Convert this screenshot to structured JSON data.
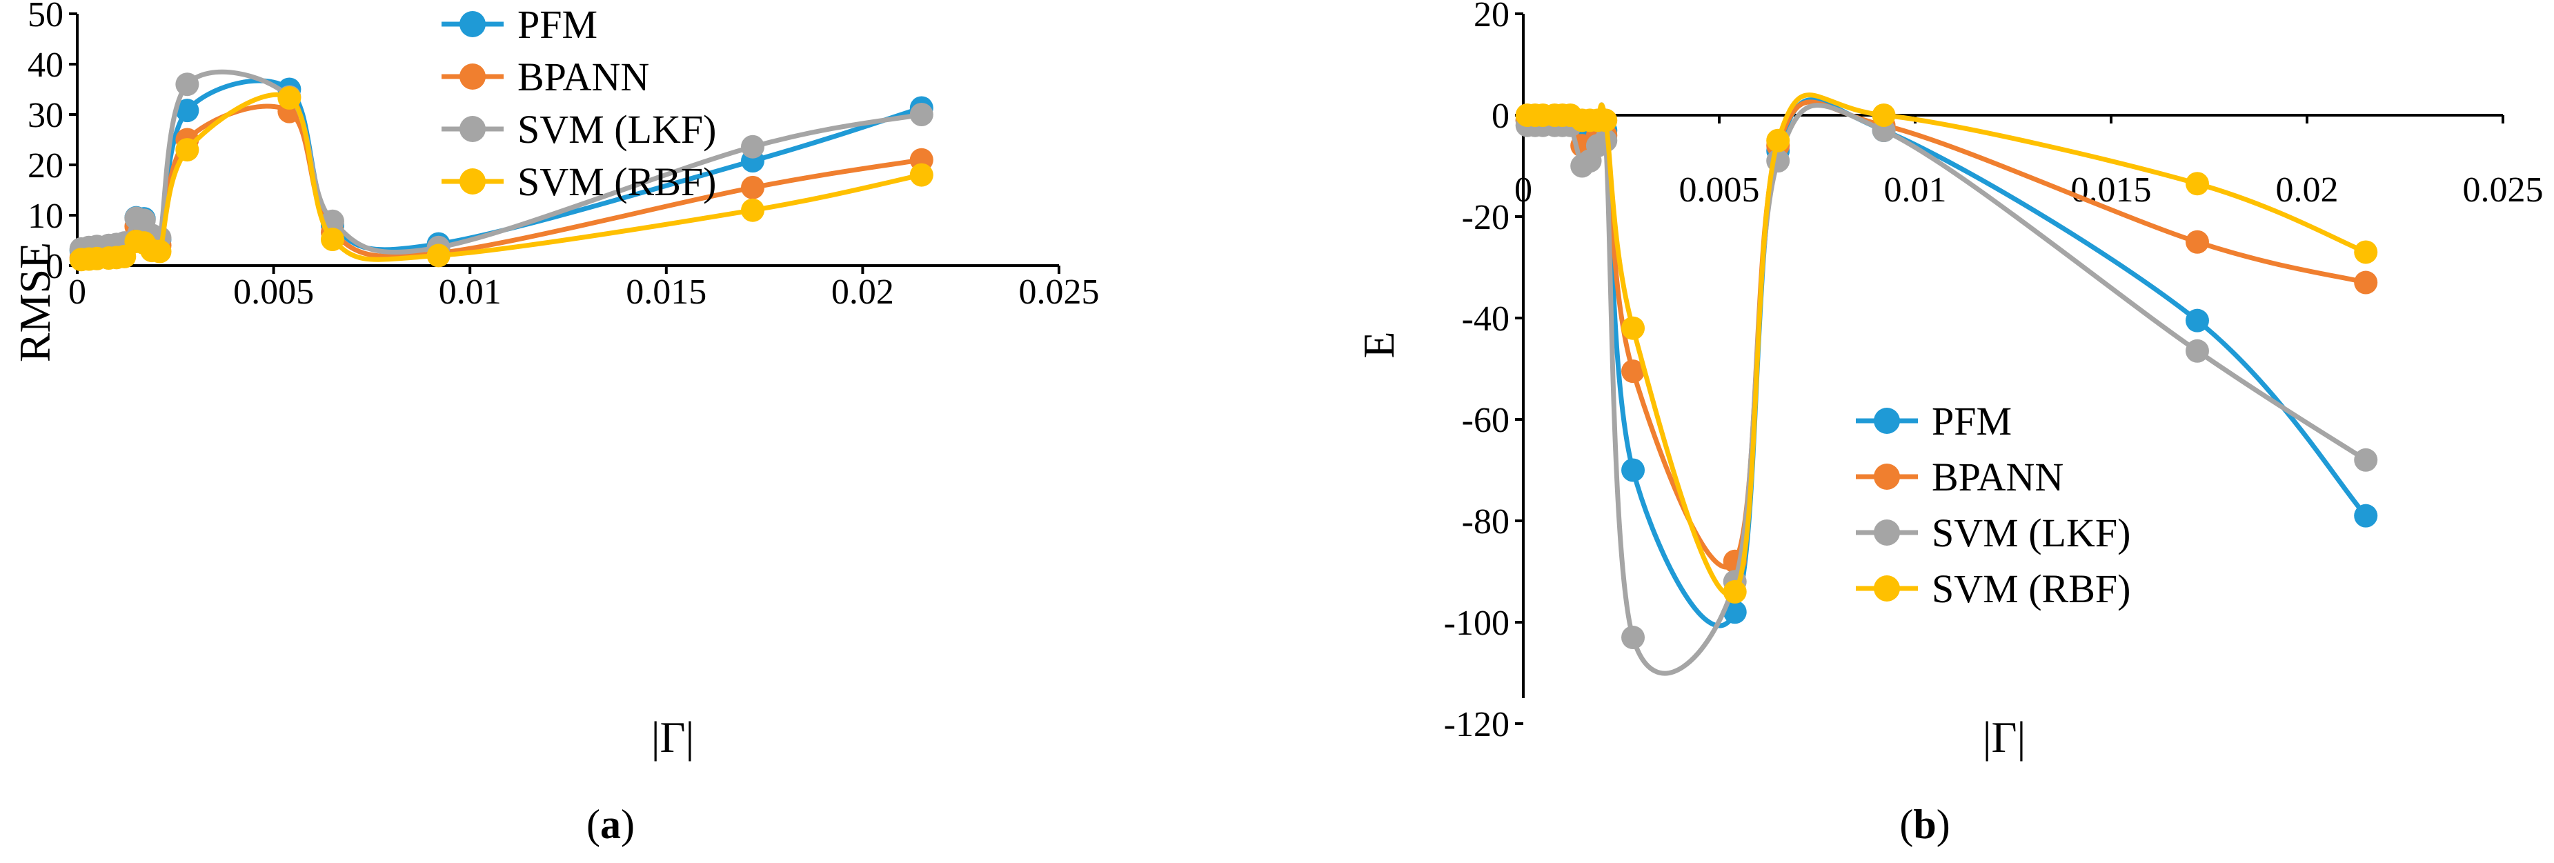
{
  "chart_data": [
    {
      "type": "scatter-smooth-line",
      "panel_label": "a",
      "xlabel": "|Γ|",
      "ylabel": "RMSE",
      "xlim": [
        0,
        0.025
      ],
      "ylim": [
        0,
        50
      ],
      "x_ticks": [
        0,
        0.005,
        0.01,
        0.015,
        0.02,
        0.025
      ],
      "x_tick_labels": [
        "0",
        "0.005",
        "0.01",
        "0.015",
        "0.02",
        "0.025"
      ],
      "y_ticks": [
        0,
        10,
        20,
        30,
        40,
        50
      ],
      "y_tick_labels": [
        "0",
        "10",
        "20",
        "30",
        "40",
        "50"
      ],
      "legend_position": "top-center",
      "x": [
        0.0001,
        0.0003,
        0.0005,
        0.0008,
        0.001,
        0.0012,
        0.0015,
        0.0017,
        0.0019,
        0.0021,
        0.0028,
        0.0054,
        0.0065,
        0.0092,
        0.0172,
        0.0215
      ],
      "series": [
        {
          "name": "PFM",
          "color": "#1f9ad6",
          "values": [
            3.0,
            3.2,
            3.3,
            3.4,
            3.5,
            3.8,
            9.5,
            9.3,
            5.8,
            5.2,
            30.8,
            35.0,
            8.0,
            4.3,
            20.8,
            31.3
          ]
        },
        {
          "name": "BPANN",
          "color": "#f07f2f",
          "values": [
            1.6,
            1.9,
            2.1,
            2.4,
            2.7,
            3.0,
            7.8,
            7.5,
            4.5,
            4.0,
            25.0,
            30.6,
            6.6,
            2.5,
            15.5,
            21.0
          ]
        },
        {
          "name": "SVM (LKF)",
          "color": "#a5a5a5",
          "values": [
            3.3,
            3.6,
            3.8,
            4.0,
            4.2,
            4.5,
            9.4,
            9.0,
            6.0,
            5.5,
            36.0,
            33.5,
            8.8,
            3.6,
            23.6,
            30.0
          ]
        },
        {
          "name": "SVM (RBF)",
          "color": "#ffc000",
          "values": [
            1.2,
            1.3,
            1.4,
            1.5,
            1.6,
            1.8,
            4.8,
            4.5,
            3.0,
            2.8,
            23.0,
            33.3,
            5.2,
            2.0,
            11.0,
            18.0
          ]
        }
      ]
    },
    {
      "type": "scatter-smooth-line",
      "panel_label": "b",
      "xlabel": "|Γ|",
      "ylabel": "E",
      "xlim": [
        0,
        0.025
      ],
      "ylim": [
        -120,
        20
      ],
      "x_ticks": [
        0,
        0.005,
        0.01,
        0.015,
        0.02,
        0.025
      ],
      "x_tick_labels": [
        "0",
        "0.005",
        "0.01",
        "0.015",
        "0.02",
        "0.025"
      ],
      "y_ticks": [
        20,
        0,
        -20,
        -40,
        -60,
        -80,
        -100,
        -120
      ],
      "y_tick_labels": [
        "20",
        "0",
        "-20",
        "-40",
        "-60",
        "-80",
        "-100",
        "-120"
      ],
      "legend_position": "lower-center",
      "x": [
        0.0001,
        0.0003,
        0.0005,
        0.0008,
        0.001,
        0.0012,
        0.0015,
        0.0017,
        0.0019,
        0.0021,
        0.0028,
        0.0054,
        0.0065,
        0.0092,
        0.0172,
        0.0215
      ],
      "series": [
        {
          "name": "PFM",
          "color": "#1f9ad6",
          "values": [
            -1,
            -1,
            -1,
            -1,
            -1,
            -1,
            -2,
            -2,
            -3,
            -3,
            -70,
            -98,
            -7,
            -3,
            -40.5,
            -79
          ]
        },
        {
          "name": "BPANN",
          "color": "#f07f2f",
          "values": [
            -1,
            -1,
            -1,
            -1,
            -1,
            -1,
            -6,
            -6,
            -4,
            -4,
            -50.5,
            -88,
            -6,
            -2,
            -25,
            -33
          ]
        },
        {
          "name": "SVM (LKF)",
          "color": "#a5a5a5",
          "values": [
            -2,
            -2,
            -2,
            -2,
            -2,
            -2,
            -10,
            -9,
            -6,
            -5,
            -103,
            -92,
            -9,
            -3,
            -46.5,
            -68
          ]
        },
        {
          "name": "SVM (RBF)",
          "color": "#ffc000",
          "values": [
            0,
            0,
            0,
            0,
            0,
            0,
            -1,
            -1,
            -1,
            -1,
            -42,
            -94,
            -5,
            0,
            -13.5,
            -27
          ]
        }
      ]
    }
  ]
}
